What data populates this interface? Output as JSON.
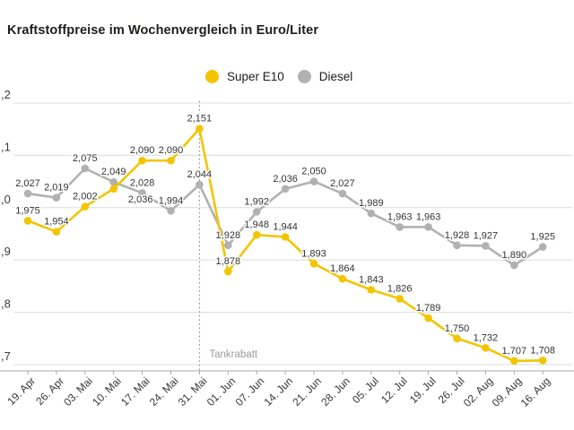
{
  "title": "Kraftstoffpreise im Wochenvergleich in Euro/Liter",
  "legend": [
    {
      "label": "Super E10",
      "color": "#f2c500"
    },
    {
      "label": "Diesel",
      "color": "#b1b1b1"
    }
  ],
  "colors": {
    "super_e10": "#f2c500",
    "diesel": "#b1b1b1",
    "grid": "#dcdcdc",
    "axis": "#a8a8a8",
    "title_text": "#1d1d1b",
    "tick_text": "#3c3c3c",
    "point_label_text": "#333333",
    "annotation": "#9b9b9b",
    "background": "#ffffff"
  },
  "chart_data": {
    "type": "line",
    "title": "Kraftstoffpreise im Wochenvergleich in Euro/Liter",
    "unit": "Euro/Liter",
    "categories": [
      "19. Apr",
      "26. Apr",
      "03. Mai",
      "10. Mai",
      "17. Mai",
      "24. Mai",
      "31. Mai",
      "01. Jun",
      "07. Jun",
      "14. Jun",
      "21. Jun",
      "28. Jun",
      "05. Jul",
      "12. Jul",
      "19. Jul",
      "26. Jul",
      "02. Aug",
      "09. Aug",
      "16. Aug"
    ],
    "series": [
      {
        "name": "Super E10",
        "color": "#f2c500",
        "values": [
          1.975,
          1.954,
          2.002,
          2.036,
          2.09,
          2.09,
          2.151,
          1.878,
          1.948,
          1.944,
          1.893,
          1.864,
          1.843,
          1.826,
          1.789,
          1.75,
          1.732,
          1.707,
          1.708
        ]
      },
      {
        "name": "Diesel",
        "color": "#b1b1b1",
        "values": [
          2.027,
          2.019,
          2.075,
          2.049,
          2.028,
          1.994,
          2.044,
          1.928,
          1.992,
          2.036,
          2.05,
          2.027,
          1.989,
          1.963,
          1.963,
          1.928,
          1.927,
          1.89,
          1.925
        ]
      }
    ],
    "point_labels": true,
    "label_format": "comma-decimal-3",
    "yticks": {
      "values": [
        2.2,
        2.1,
        2.0,
        1.9,
        1.8,
        1.7
      ],
      "visible_labels": [
        ",2",
        ",1",
        ",0",
        ",9",
        ",8",
        ",7"
      ]
    },
    "ylim": [
      1.65,
      2.25
    ],
    "grid": true,
    "legend_position": "top-center",
    "x_label_rotation_deg": -45,
    "annotation": {
      "text": "Tankrabatt",
      "x_category": "31. Mai",
      "style": "vertical-dotted-line"
    }
  }
}
